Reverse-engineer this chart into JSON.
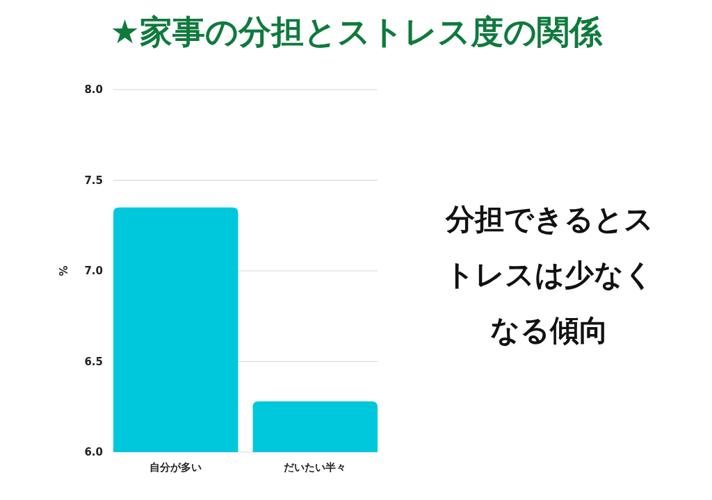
{
  "chart_data": {
    "type": "bar",
    "title": "★家事の分担とストレス度の関係",
    "ylabel": "%",
    "categories": [
      "自分が多い",
      "だいたい半々"
    ],
    "values": [
      7.35,
      6.28
    ],
    "color": "#00c8dc",
    "ylim": [
      6,
      8
    ],
    "yticks": [
      {
        "value": 6,
        "label": "6.0"
      },
      {
        "value": 6.5,
        "label": "6.5"
      },
      {
        "value": 7,
        "label": "7.0"
      },
      {
        "value": 7.5,
        "label": "7.5"
      },
      {
        "value": 8,
        "label": "8.0"
      }
    ],
    "grid": "y",
    "annotations": [
      "分担できるとストレスは少なくなる傾向"
    ]
  }
}
